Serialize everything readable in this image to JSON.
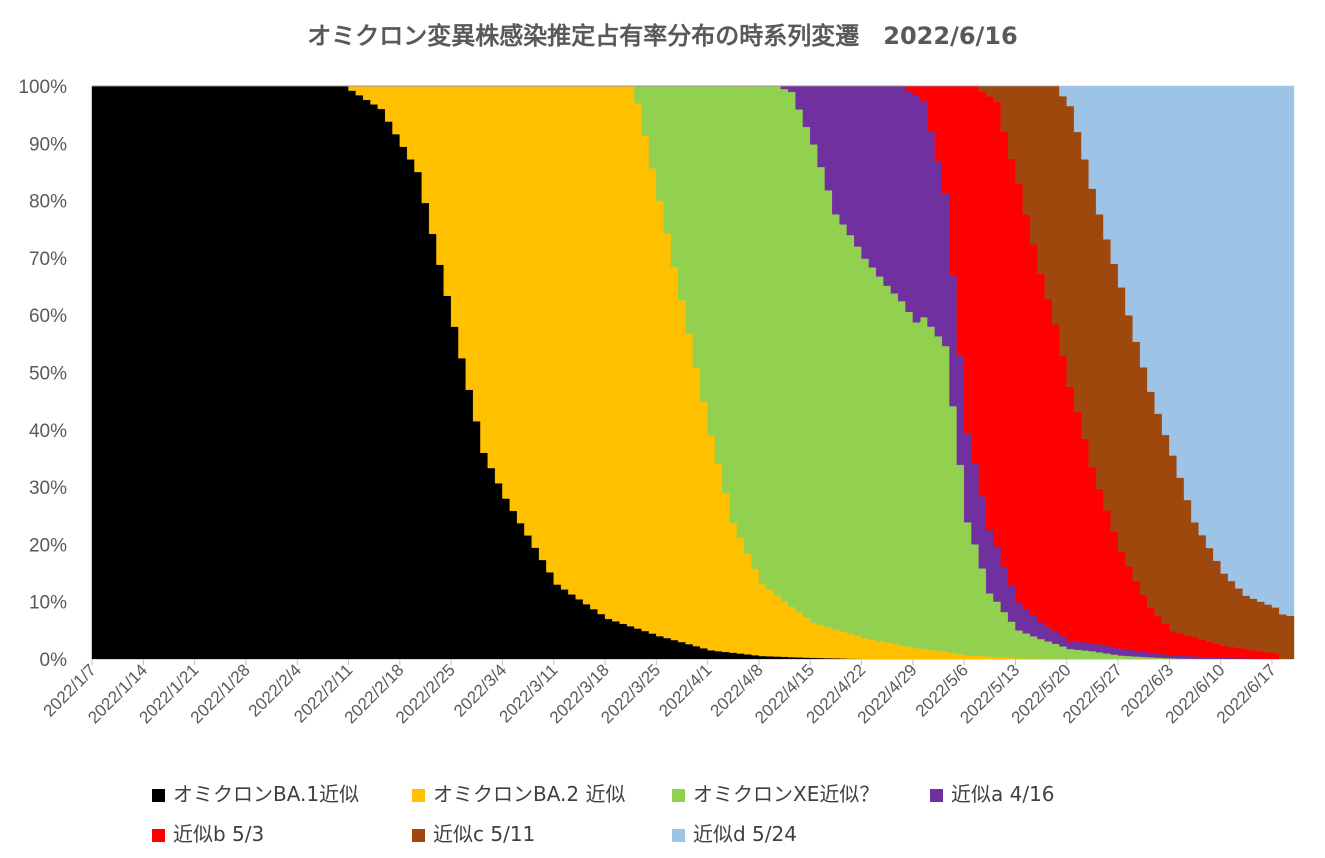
{
  "chart_data": {
    "type": "area",
    "stacked": "percent",
    "title": "オミクロン変異株感染推定占有率分布の時系列変遷　2022/6/16",
    "x_start": "2022/1/7",
    "x_end": "2022/6/19",
    "x_tick_labels": [
      "2022/1/7",
      "2022/1/14",
      "2022/1/21",
      "2022/1/28",
      "2022/2/4",
      "2022/2/11",
      "2022/2/18",
      "2022/2/25",
      "2022/3/4",
      "2022/3/11",
      "2022/3/18",
      "2022/3/25",
      "2022/4/1",
      "2022/4/8",
      "2022/4/15",
      "2022/4/22",
      "2022/4/29",
      "2022/5/6",
      "2022/5/13",
      "2022/5/20",
      "2022/5/27",
      "2022/6/3",
      "2022/6/10",
      "2022/6/17"
    ],
    "y_tick_labels": [
      "0%",
      "10%",
      "20%",
      "30%",
      "40%",
      "50%",
      "60%",
      "70%",
      "80%",
      "90%",
      "100%"
    ],
    "ylim": [
      0,
      100
    ],
    "legend_position": "bottom",
    "series": [
      {
        "name": "オミクロンBA.1近似",
        "color": "#000000",
        "points": [
          [
            "2022/1/7",
            100
          ],
          [
            "2022/2/10",
            100
          ],
          [
            "2022/2/15",
            96
          ],
          [
            "2022/2/20",
            85
          ],
          [
            "2022/2/25",
            58
          ],
          [
            "2022/3/1",
            36
          ],
          [
            "2022/3/4",
            28
          ],
          [
            "2022/3/11",
            13
          ],
          [
            "2022/3/18",
            7
          ],
          [
            "2022/3/25",
            4
          ],
          [
            "2022/4/1",
            1.5
          ],
          [
            "2022/4/8",
            0.5
          ],
          [
            "2022/4/15",
            0.2
          ],
          [
            "2022/4/22",
            0
          ],
          [
            "2022/6/19",
            0
          ]
        ]
      },
      {
        "name": "オミクロンBA.2 近似",
        "color": "#FFC000",
        "points": [
          [
            "2022/1/7",
            0
          ],
          [
            "2022/2/10",
            0
          ],
          [
            "2022/2/15",
            4
          ],
          [
            "2022/2/20",
            15
          ],
          [
            "2022/2/25",
            42
          ],
          [
            "2022/3/1",
            64
          ],
          [
            "2022/3/4",
            72
          ],
          [
            "2022/3/11",
            87
          ],
          [
            "2022/3/18",
            93
          ],
          [
            "2022/3/21",
            94
          ],
          [
            "2022/3/22",
            91
          ],
          [
            "2022/3/25",
            76
          ],
          [
            "2022/3/28",
            59
          ],
          [
            "2022/4/1",
            37
          ],
          [
            "2022/4/4",
            22
          ],
          [
            "2022/4/8",
            12
          ],
          [
            "2022/4/15",
            6
          ],
          [
            "2022/4/22",
            3
          ],
          [
            "2022/4/29",
            1.5
          ],
          [
            "2022/5/6",
            0.5
          ],
          [
            "2022/5/13",
            0.1
          ],
          [
            "2022/5/20",
            0
          ],
          [
            "2022/6/19",
            0
          ]
        ]
      },
      {
        "name": "オミクロンXE近似？",
        "color": "#92D050",
        "points": [
          [
            "2022/1/7",
            0
          ],
          [
            "2022/3/21",
            0
          ],
          [
            "2022/3/22",
            3
          ],
          [
            "2022/3/25",
            20
          ],
          [
            "2022/3/28",
            37
          ],
          [
            "2022/4/1",
            60
          ],
          [
            "2022/4/4",
            74
          ],
          [
            "2022/4/8",
            83
          ],
          [
            "2022/4/12",
            88
          ],
          [
            "2022/4/15",
            82
          ],
          [
            "2022/4/18",
            68
          ],
          [
            "2022/4/22",
            55
          ],
          [
            "2022/4/25",
            50
          ],
          [
            "2022/4/29",
            46
          ],
          [
            "2022/5/3",
            40
          ],
          [
            "2022/5/6",
            18
          ],
          [
            "2022/5/9",
            8
          ],
          [
            "2022/5/13",
            4
          ],
          [
            "2022/5/20",
            1.5
          ],
          [
            "2022/5/27",
            0.5
          ],
          [
            "2022/6/3",
            0.1
          ],
          [
            "2022/6/10",
            0
          ],
          [
            "2022/6/19",
            0
          ]
        ]
      },
      {
        "name": "近似a 4/16",
        "color": "#7030A0",
        "points": [
          [
            "2022/1/7",
            0
          ],
          [
            "2022/4/10",
            0
          ],
          [
            "2022/4/12",
            1
          ],
          [
            "2022/4/15",
            10
          ],
          [
            "2022/4/18",
            21
          ],
          [
            "2022/4/22",
            25
          ],
          [
            "2022/4/25",
            28
          ],
          [
            "2022/4/29",
            32
          ],
          [
            "2022/5/3",
            20
          ],
          [
            "2022/5/6",
            12
          ],
          [
            "2022/5/9",
            8
          ],
          [
            "2022/5/13",
            4
          ],
          [
            "2022/5/16",
            2.5
          ],
          [
            "2022/5/20",
            1.2
          ],
          [
            "2022/5/27",
            1
          ],
          [
            "2022/6/3",
            0.5
          ],
          [
            "2022/6/10",
            0.2
          ],
          [
            "2022/6/17",
            0
          ],
          [
            "2022/6/19",
            0
          ]
        ]
      },
      {
        "name": "近似b 5/3",
        "color": "#FF0000",
        "points": [
          [
            "2022/1/7",
            0
          ],
          [
            "2022/4/27",
            0
          ],
          [
            "2022/4/30",
            2
          ],
          [
            "2022/5/3",
            14
          ],
          [
            "2022/5/6",
            47
          ],
          [
            "2022/5/9",
            55
          ],
          [
            "2022/5/13",
            60
          ],
          [
            "2022/5/16",
            52
          ],
          [
            "2022/5/20",
            38
          ],
          [
            "2022/5/23",
            24
          ],
          [
            "2022/5/27",
            14
          ],
          [
            "2022/5/31",
            7
          ],
          [
            "2022/6/3",
            4
          ],
          [
            "2022/6/10",
            2
          ],
          [
            "2022/6/17",
            1
          ],
          [
            "2022/6/18",
            0
          ],
          [
            "2022/6/19",
            0
          ]
        ]
      },
      {
        "name": "近似c 5/11",
        "color": "#9E480E",
        "points": [
          [
            "2022/1/7",
            0
          ],
          [
            "2022/5/7",
            0
          ],
          [
            "2022/5/10",
            2
          ],
          [
            "2022/5/13",
            14
          ],
          [
            "2022/5/16",
            28
          ],
          [
            "2022/5/20",
            42
          ],
          [
            "2022/5/23",
            38
          ],
          [
            "2022/5/27",
            38
          ],
          [
            "2022/5/31",
            34
          ],
          [
            "2022/6/3",
            29
          ],
          [
            "2022/6/6",
            19
          ],
          [
            "2022/6/10",
            12
          ],
          [
            "2022/6/13",
            9
          ],
          [
            "2022/6/17",
            8
          ],
          [
            "2022/6/19",
            7.5
          ]
        ]
      },
      {
        "name": "近似d 5/24",
        "color": "#9DC3E6",
        "points": [
          [
            "2022/1/7",
            0
          ],
          [
            "2022/5/18",
            0
          ],
          [
            "2022/5/20",
            3
          ],
          [
            "2022/5/23",
            14
          ],
          [
            "2022/5/27",
            29
          ],
          [
            "2022/5/31",
            48
          ],
          [
            "2022/6/3",
            61
          ],
          [
            "2022/6/6",
            72
          ],
          [
            "2022/6/10",
            81
          ],
          [
            "2022/6/13",
            86
          ],
          [
            "2022/6/17",
            91
          ],
          [
            "2022/6/19",
            92
          ]
        ]
      }
    ]
  }
}
